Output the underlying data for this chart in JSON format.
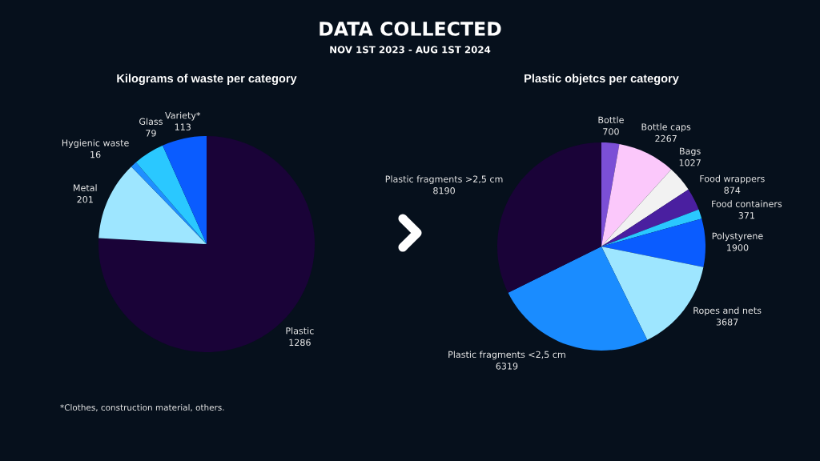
{
  "chart_data": [
    {
      "type": "other",
      "title": "DATA COLLECTED",
      "subtitle": "NOV 1ST 2023 - AUG 1ST 2024"
    },
    {
      "type": "pie",
      "title": "Kilograms of waste per category",
      "categories": [
        "Plastic",
        "Metal",
        "Hygienic waste",
        "Glass",
        "Variety*"
      ],
      "values": [
        1286,
        201,
        16,
        79,
        113
      ],
      "colors": [
        "#1a0338",
        "#9ee6ff",
        "#1f8fff",
        "#2ac8ff",
        "#0a5cff"
      ],
      "data_labels": true,
      "annotations": [
        "*Clothes, construction material, others."
      ]
    },
    {
      "type": "pie",
      "title": "Plastic objetcs per category",
      "categories": [
        "Bottle",
        "Bottle caps",
        "Bags",
        "Food wrappers",
        "Food containers",
        "Polystyrene",
        "Ropes and nets",
        "Plastic fragments <2,5 cm",
        "Plastic fragments >2,5 cm"
      ],
      "values": [
        700,
        2267,
        1027,
        874,
        371,
        1900,
        3687,
        6319,
        8190
      ],
      "colors": [
        "#7b4fd6",
        "#fbc8fb",
        "#f2f2f2",
        "#4a1fa0",
        "#2ac8ff",
        "#0a5cff",
        "#9ee6ff",
        "#1a8cff",
        "#1a0338"
      ],
      "data_labels": true
    }
  ]
}
